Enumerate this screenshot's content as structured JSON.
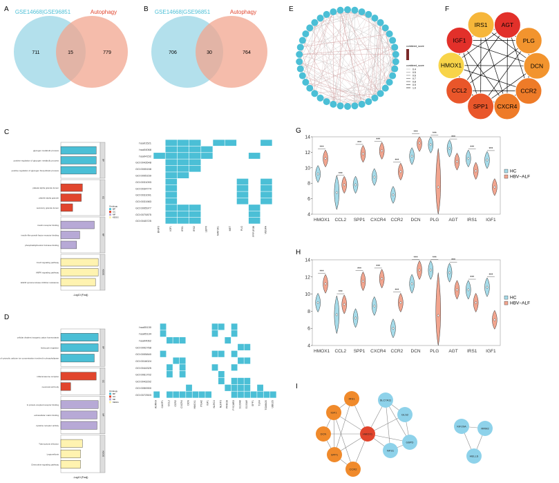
{
  "panels": {
    "A": "A",
    "B": "B",
    "C": "C",
    "D": "D",
    "E": "E",
    "F": "F",
    "G": "G",
    "H": "H",
    "I": "I"
  },
  "colors": {
    "blue": "#4bbfd6",
    "red": "#e1452d",
    "purple": "#b7a9d6",
    "yellow": "#fff3b0",
    "orange": "#f08a2b",
    "venn_blue": "#a6dbe9",
    "venn_red": "#f2a58f",
    "hc": "#a6dbe9",
    "alf": "#f2a58f",
    "heat": "#4bbfd6",
    "node_blue": "#8ed2ea",
    "node_orange": "#f08a2b"
  },
  "venn_a": {
    "left_label": "GSE14668|GSE96851",
    "right_label": "Autophagy",
    "left": "711",
    "mid": "15",
    "right": "779"
  },
  "venn_b": {
    "left_label": "GSE14668|GSE96851",
    "right_label": "Autophagy",
    "left": "706",
    "mid": "30",
    "right": "764"
  },
  "network_e": {
    "legend_title1": "combined_score",
    "legend_title2": "combined_score",
    "legend_values": [
      "0.4",
      "0.5",
      "0.6",
      "0.7",
      "0.8",
      "0.9",
      "1.0"
    ]
  },
  "network_f": {
    "nodes": [
      {
        "label": "IRS1",
        "color": "#f6b63a"
      },
      {
        "label": "AGT",
        "color": "#e2302a"
      },
      {
        "label": "PLG",
        "color": "#f2942e"
      },
      {
        "label": "DCN",
        "color": "#f2942e"
      },
      {
        "label": "CCR2",
        "color": "#ee7b28"
      },
      {
        "label": "CXCR4",
        "color": "#ee7b28"
      },
      {
        "label": "SPP1",
        "color": "#e9562a"
      },
      {
        "label": "CCL2",
        "color": "#e9562a"
      },
      {
        "label": "HMOX1",
        "color": "#f8d449"
      },
      {
        "label": "IGF1",
        "color": "#e2302a"
      }
    ]
  },
  "enrich_c": {
    "categories": [
      "BP",
      "CC",
      "MF",
      "KEGG"
    ],
    "bars": [
      {
        "label": "glycogen metabolic process",
        "cat": "BP",
        "value": 0.9
      },
      {
        "label": "positive regulation of glycogen metabolic process",
        "cat": "BP",
        "value": 0.9
      },
      {
        "label": "positive regulation of glycogen biosynthetic process",
        "cat": "BP",
        "value": 0.9
      },
      {
        "label": "platelet alpha granule lumen",
        "cat": "CC",
        "value": 0.55
      },
      {
        "label": "platelet alpha granule",
        "cat": "CC",
        "value": 0.52
      },
      {
        "label": "secretory granule lumen",
        "cat": "CC",
        "value": 0.3
      },
      {
        "label": "insulin receptor binding",
        "cat": "MF",
        "value": 0.85
      },
      {
        "label": "insulin-like growth factor receptor binding",
        "cat": "MF",
        "value": 0.48
      },
      {
        "label": "phosphatidylinositol 3-kinase binding",
        "cat": "MF",
        "value": 0.4
      },
      {
        "label": "FoxO signaling pathway",
        "cat": "KEGG",
        "value": 0.95
      },
      {
        "label": "AMPK signaling pathway",
        "cat": "KEGG",
        "value": 0.95
      },
      {
        "label": "EGFR tyrosine kinase inhibitor resistance",
        "cat": "KEGG",
        "value": 0.88
      }
    ],
    "xlabel": "-Log10 (P.adj)",
    "legend": [
      "Ontology",
      "BP",
      "CC",
      "MF",
      "KEGG"
    ]
  },
  "heat_c": {
    "rows": [
      "hsa01521",
      "hsa04068",
      "hsa04152",
      "GO:0043548",
      "GO:0005158",
      "GO:0005159",
      "GO:0031093",
      "GO:0034774",
      "GO:0031091",
      "GO:0031983",
      "GO:0005977",
      "GO:0070875",
      "GO:0045725"
    ],
    "cols": [
      "BNIP3",
      "IGF1",
      "IRS1",
      "IRS2",
      "LEPR",
      "MAP2K1",
      "MET",
      "PLG",
      "PPP1R3B",
      "VEGFA"
    ],
    "cells": [
      [
        0,
        1,
        1,
        1,
        0,
        1,
        1,
        0,
        0,
        1
      ],
      [
        0,
        1,
        1,
        1,
        1,
        0,
        0,
        0,
        0,
        0
      ],
      [
        1,
        1,
        1,
        1,
        1,
        0,
        0,
        0,
        1,
        0
      ],
      [
        0,
        1,
        1,
        1,
        0,
        0,
        0,
        0,
        0,
        0
      ],
      [
        0,
        1,
        1,
        1,
        0,
        0,
        0,
        0,
        0,
        0
      ],
      [
        0,
        1,
        1,
        0,
        0,
        0,
        0,
        0,
        0,
        0
      ],
      [
        0,
        1,
        0,
        0,
        0,
        0,
        0,
        1,
        0,
        1
      ],
      [
        0,
        1,
        0,
        0,
        0,
        0,
        0,
        1,
        0,
        1
      ],
      [
        0,
        1,
        0,
        0,
        0,
        0,
        0,
        1,
        0,
        1
      ],
      [
        0,
        1,
        0,
        0,
        0,
        0,
        0,
        1,
        0,
        1
      ],
      [
        0,
        1,
        1,
        1,
        0,
        0,
        0,
        0,
        1,
        0
      ],
      [
        0,
        1,
        1,
        1,
        0,
        0,
        0,
        0,
        1,
        0
      ],
      [
        0,
        1,
        1,
        1,
        0,
        0,
        0,
        0,
        1,
        0
      ]
    ]
  },
  "enrich_d": {
    "categories": [
      "BP",
      "CC",
      "MF",
      "KEGG"
    ],
    "bars": [
      {
        "label": "cellular divalent inorganic cation homeostasis",
        "cat": "BP",
        "value": 0.95
      },
      {
        "label": "leukocyte migration",
        "cat": "BP",
        "value": 0.95
      },
      {
        "label": "positive regulation of cytosolic calcium ion concentration involved in phospholipase",
        "cat": "BP",
        "value": 0.85
      },
      {
        "label": "inflammasome complex",
        "cat": "CC",
        "value": 0.9
      },
      {
        "label": "neuronal cell body",
        "cat": "CC",
        "value": 0.25
      },
      {
        "label": "G protein-coupled receptor binding",
        "cat": "MF",
        "value": 0.95
      },
      {
        "label": "extracellular matrix binding",
        "cat": "MF",
        "value": 0.92
      },
      {
        "label": "cytokine receptor activity",
        "cat": "MF",
        "value": 0.92
      },
      {
        "label": "Tuberculosis infection",
        "cat": "KEGG",
        "value": 0.55
      },
      {
        "label": "Legionellosis",
        "cat": "KEGG",
        "value": 0.5
      },
      {
        "label": "Chemokine signaling pathway",
        "cat": "KEGG",
        "value": 0.5
      }
    ],
    "xlabel": "-Log10 (P.adj)",
    "legend": [
      "Ontology",
      "BP",
      "CC",
      "MF",
      "KEGG"
    ]
  },
  "heat_d": {
    "rows": [
      "hsa05130",
      "hsa05134",
      "hsa04062",
      "GO:0002768",
      "GO:0005840",
      "GO:0016024",
      "GO:0044325",
      "GO:0061702",
      "GO:0043292",
      "GO:0050900",
      "GO:0072503"
    ],
    "cols": [
      "AURKA",
      "CASP1",
      "CCL2",
      "CCR2",
      "CXCR4",
      "DCN",
      "HMOX1",
      "ITGA2",
      "IGF1",
      "NLRC4",
      "NLRP3",
      "PRKCB",
      "PYCARD",
      "S100A8",
      "S100A9",
      "SPP1",
      "TLR4",
      "TOMM20",
      "UBE2S"
    ],
    "cells": [
      [
        0,
        1,
        0,
        0,
        0,
        0,
        0,
        0,
        0,
        1,
        1,
        0,
        1,
        0,
        0,
        0,
        0,
        0,
        0
      ],
      [
        0,
        1,
        0,
        0,
        0,
        0,
        0,
        0,
        0,
        1,
        0,
        0,
        1,
        0,
        0,
        0,
        0,
        0,
        0
      ],
      [
        0,
        0,
        1,
        1,
        1,
        0,
        0,
        0,
        0,
        0,
        0,
        1,
        0,
        0,
        0,
        0,
        0,
        0,
        0
      ],
      [
        0,
        0,
        0,
        0,
        0,
        0,
        0,
        0,
        0,
        0,
        0,
        0,
        0,
        1,
        1,
        0,
        0,
        0,
        0
      ],
      [
        0,
        1,
        0,
        0,
        0,
        0,
        0,
        0,
        0,
        1,
        1,
        0,
        1,
        0,
        0,
        0,
        0,
        0,
        0
      ],
      [
        0,
        0,
        0,
        1,
        1,
        0,
        0,
        0,
        0,
        0,
        0,
        0,
        0,
        1,
        1,
        0,
        0,
        0,
        0
      ],
      [
        0,
        0,
        1,
        0,
        1,
        0,
        0,
        0,
        0,
        1,
        0,
        0,
        1,
        0,
        0,
        0,
        0,
        0,
        0
      ],
      [
        0,
        0,
        1,
        0,
        1,
        0,
        0,
        0,
        0,
        0,
        1,
        0,
        0,
        0,
        0,
        0,
        0,
        0,
        0
      ],
      [
        0,
        0,
        0,
        0,
        0,
        0,
        0,
        0,
        0,
        0,
        1,
        0,
        1,
        1,
        1,
        0,
        0,
        0,
        0
      ],
      [
        0,
        0,
        0,
        0,
        0,
        1,
        0,
        0,
        0,
        0,
        0,
        1,
        1,
        1,
        1,
        0,
        1,
        0,
        0
      ],
      [
        1,
        0,
        1,
        1,
        1,
        1,
        1,
        1,
        1,
        0,
        0,
        0,
        1,
        1,
        1,
        1,
        1,
        1,
        1
      ]
    ]
  },
  "violin_g": {
    "genes": [
      "HMOX1",
      "CCL2",
      "SPP1",
      "CXCR4",
      "CCR2",
      "DCN",
      "PLG",
      "AGT",
      "IRS1",
      "IGF1"
    ],
    "hc": [
      9.2,
      6.8,
      7.8,
      8.8,
      6.5,
      11.5,
      13,
      12.5,
      11.2,
      11
    ],
    "alf": [
      11.2,
      7.8,
      11.8,
      12.2,
      9.5,
      13.2,
      7.5,
      10.8,
      9.6,
      7.5
    ],
    "ylim": [
      4,
      14
    ],
    "yticks": [
      "4",
      "6",
      "8",
      "10",
      "12",
      "14"
    ],
    "sig": "***",
    "legend": [
      "HC",
      "HBV−ALF"
    ]
  },
  "violin_h": {
    "genes": [
      "HMOX1",
      "CCL2",
      "SPP1",
      "CXCR4",
      "CCR2",
      "DCN",
      "PLG",
      "AGT",
      "IRS1",
      "IGF1"
    ],
    "hc": [
      9,
      7.6,
      7.2,
      8.6,
      6,
      11.2,
      12.8,
      12.5,
      10.5,
      10.8
    ],
    "alf": [
      11.2,
      8.8,
      11.5,
      11.8,
      9,
      12.8,
      7.5,
      10.5,
      9,
      7
    ],
    "ylim": [
      4,
      14
    ],
    "yticks": [
      "4",
      "6",
      "8",
      "10",
      "12",
      "14"
    ],
    "sig": "***",
    "legend": [
      "HC",
      "HBV−ALF"
    ]
  },
  "network_i": {
    "nodes": [
      {
        "label": "IRS1",
        "kind": "orange"
      },
      {
        "label": "IGF1",
        "kind": "orange"
      },
      {
        "label": "DCN",
        "kind": "orange"
      },
      {
        "label": "SPP1",
        "kind": "orange"
      },
      {
        "label": "CCR2",
        "kind": "orange"
      },
      {
        "label": "HMOX1",
        "kind": "red"
      },
      {
        "label": "SLC7A11",
        "kind": "blue"
      },
      {
        "label": "GLS2",
        "kind": "blue"
      },
      {
        "label": "NFS1",
        "kind": "blue"
      },
      {
        "label": "G6PD",
        "kind": "blue"
      },
      {
        "label": "KIF20A",
        "kind": "blue"
      },
      {
        "label": "RRM2",
        "kind": "blue"
      },
      {
        "label": "HELLS",
        "kind": "blue"
      }
    ]
  }
}
